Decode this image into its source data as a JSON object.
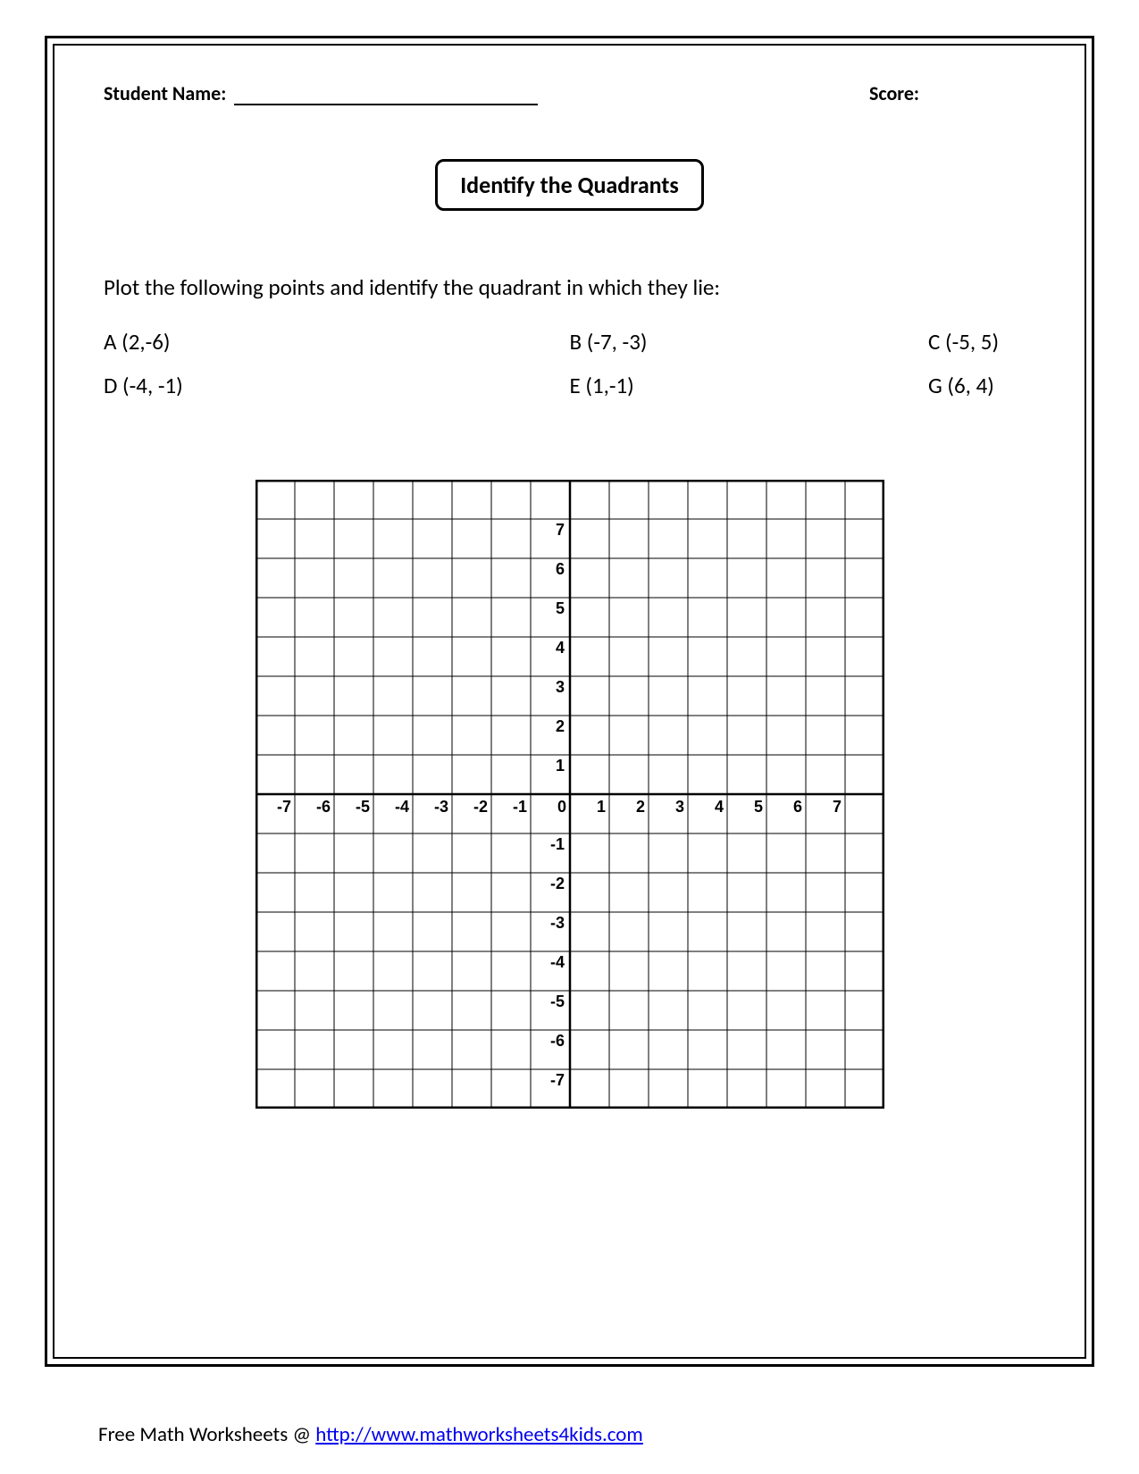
{
  "header": {
    "student_name_label": "Student Name:",
    "score_label": "Score:"
  },
  "title": "Identify the Quadrants",
  "instruction": "Plot the following points and identify the quadrant in which they lie:",
  "points": [
    {
      "label": "A (2,-6)"
    },
    {
      "label": "B (-7, -3)"
    },
    {
      "label": "C (-5, 5)"
    },
    {
      "label": "D (-4, -1)"
    },
    {
      "label": "E (1,-1)"
    },
    {
      "label": "G (6, 4)"
    }
  ],
  "graph": {
    "type": "grid",
    "x_min": -8,
    "x_max": 8,
    "y_min": -8,
    "y_max": 8,
    "x_tick_min": -7,
    "x_tick_max": 7,
    "y_tick_min": -7,
    "y_tick_max": 7,
    "cell_size": 44,
    "border_color": "#000000",
    "grid_color": "#000000",
    "grid_stroke": 1,
    "border_stroke": 2.5,
    "axis_stroke": 2.5,
    "label_fontsize": 18,
    "label_font": "Arial",
    "label_weight": "bold",
    "background_color": "#ffffff"
  },
  "footer": {
    "prefix": "Free Math Worksheets @ ",
    "link_text": "http://www.mathworksheets4kids.com",
    "link_href": "http://www.mathworksheets4kids.com"
  },
  "colors": {
    "text": "#000000",
    "background": "#ffffff",
    "link": "#0000EE"
  }
}
